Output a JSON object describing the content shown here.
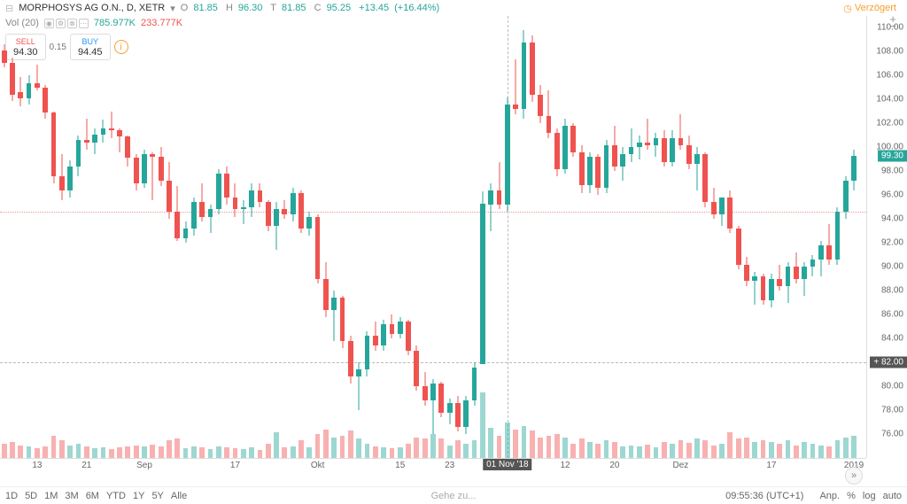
{
  "header": {
    "symbol": "MORPHOSYS AG O.N., D, XETR",
    "O_lbl": "O",
    "O": "81.85",
    "H_lbl": "H",
    "H": "96.30",
    "T_lbl": "T",
    "T": "81.85",
    "C_lbl": "C",
    "C": "95.25",
    "chg": "+13.45",
    "pct": "(+16.44%)",
    "delayed": "Verzögert"
  },
  "volrow": {
    "label": "Vol (20)",
    "v1": "785.977K",
    "v2": "233.777K"
  },
  "buysell": {
    "sell_lbl": "SELL",
    "sell": "94.30",
    "spread": "0.15",
    "buy_lbl": "BUY",
    "buy": "94.45"
  },
  "chart": {
    "type": "candlestick",
    "y_min": 74,
    "y_max": 111,
    "y_ticks": [
      76,
      78,
      80,
      82,
      84,
      86,
      88,
      90,
      92,
      94,
      96,
      98,
      100,
      102,
      104,
      106,
      108,
      110
    ],
    "price_tag": 99.3,
    "cross_y": 82.0,
    "ref_line": 94.6,
    "colors": {
      "up": "#26a69a",
      "down": "#ef5350",
      "grid": "#eeeeee",
      "wick": "#666666"
    },
    "x_ticks": [
      {
        "i": 4,
        "l": "13"
      },
      {
        "i": 10,
        "l": "21"
      },
      {
        "i": 17,
        "l": "Sep"
      },
      {
        "i": 28,
        "l": "17"
      },
      {
        "i": 38,
        "l": "Okt"
      },
      {
        "i": 48,
        "l": "15"
      },
      {
        "i": 54,
        "l": "23"
      },
      {
        "i": 61,
        "l": "01 Nov '18"
      },
      {
        "i": 68,
        "l": "12"
      },
      {
        "i": 74,
        "l": "20"
      },
      {
        "i": 82,
        "l": "Dez"
      },
      {
        "i": 93,
        "l": "17"
      },
      {
        "i": 103,
        "l": "2019"
      }
    ],
    "cross_x": 61,
    "candles": [
      {
        "o": 108.1,
        "h": 108.6,
        "l": 106.7,
        "c": 107.1
      },
      {
        "o": 107.1,
        "h": 107.5,
        "l": 103.9,
        "c": 104.4
      },
      {
        "o": 104.6,
        "h": 105.9,
        "l": 103.4,
        "c": 104.1
      },
      {
        "o": 104.1,
        "h": 106.0,
        "l": 103.6,
        "c": 105.4
      },
      {
        "o": 105.4,
        "h": 106.9,
        "l": 104.8,
        "c": 105.0
      },
      {
        "o": 105.0,
        "h": 105.2,
        "l": 102.4,
        "c": 102.9
      },
      {
        "o": 102.9,
        "h": 103.0,
        "l": 97.0,
        "c": 97.6
      },
      {
        "o": 97.6,
        "h": 99.4,
        "l": 95.6,
        "c": 96.4
      },
      {
        "o": 96.4,
        "h": 98.9,
        "l": 95.8,
        "c": 98.4
      },
      {
        "o": 98.4,
        "h": 101.0,
        "l": 97.6,
        "c": 100.6
      },
      {
        "o": 100.6,
        "h": 102.4,
        "l": 99.8,
        "c": 100.4
      },
      {
        "o": 100.4,
        "h": 101.6,
        "l": 99.4,
        "c": 101.1
      },
      {
        "o": 101.1,
        "h": 102.3,
        "l": 100.4,
        "c": 101.6
      },
      {
        "o": 101.6,
        "h": 103.0,
        "l": 100.8,
        "c": 101.4
      },
      {
        "o": 101.4,
        "h": 101.6,
        "l": 99.6,
        "c": 100.9
      },
      {
        "o": 100.9,
        "h": 101.0,
        "l": 98.4,
        "c": 99.1
      },
      {
        "o": 99.1,
        "h": 99.4,
        "l": 96.4,
        "c": 97.0
      },
      {
        "o": 97.0,
        "h": 99.8,
        "l": 96.6,
        "c": 99.4
      },
      {
        "o": 99.4,
        "h": 99.6,
        "l": 95.6,
        "c": 99.2
      },
      {
        "o": 99.2,
        "h": 100.0,
        "l": 96.8,
        "c": 97.2
      },
      {
        "o": 97.2,
        "h": 98.8,
        "l": 94.0,
        "c": 94.6
      },
      {
        "o": 94.6,
        "h": 96.8,
        "l": 92.2,
        "c": 92.4
      },
      {
        "o": 92.4,
        "h": 93.8,
        "l": 92.0,
        "c": 93.2
      },
      {
        "o": 93.2,
        "h": 95.8,
        "l": 92.6,
        "c": 95.4
      },
      {
        "o": 95.4,
        "h": 97.0,
        "l": 93.8,
        "c": 94.2
      },
      {
        "o": 94.2,
        "h": 95.2,
        "l": 92.8,
        "c": 94.8
      },
      {
        "o": 94.8,
        "h": 98.2,
        "l": 94.4,
        "c": 97.8
      },
      {
        "o": 97.8,
        "h": 98.4,
        "l": 95.2,
        "c": 95.8
      },
      {
        "o": 95.8,
        "h": 97.0,
        "l": 94.2,
        "c": 94.8
      },
      {
        "o": 94.8,
        "h": 95.6,
        "l": 93.6,
        "c": 95.0
      },
      {
        "o": 95.0,
        "h": 97.0,
        "l": 94.2,
        "c": 96.4
      },
      {
        "o": 96.4,
        "h": 97.0,
        "l": 95.0,
        "c": 95.4
      },
      {
        "o": 95.4,
        "h": 95.6,
        "l": 93.0,
        "c": 93.4
      },
      {
        "o": 93.4,
        "h": 95.4,
        "l": 91.4,
        "c": 94.8
      },
      {
        "o": 94.8,
        "h": 95.6,
        "l": 94.0,
        "c": 94.4
      },
      {
        "o": 94.4,
        "h": 96.6,
        "l": 93.8,
        "c": 96.2
      },
      {
        "o": 96.2,
        "h": 96.4,
        "l": 92.8,
        "c": 93.2
      },
      {
        "o": 93.2,
        "h": 94.6,
        "l": 92.6,
        "c": 94.2
      },
      {
        "o": 94.2,
        "h": 94.4,
        "l": 88.6,
        "c": 89.0
      },
      {
        "o": 89.0,
        "h": 90.4,
        "l": 85.8,
        "c": 86.4
      },
      {
        "o": 86.4,
        "h": 88.0,
        "l": 83.8,
        "c": 87.4
      },
      {
        "o": 87.4,
        "h": 87.6,
        "l": 83.2,
        "c": 83.8
      },
      {
        "o": 83.8,
        "h": 84.2,
        "l": 80.2,
        "c": 80.8
      },
      {
        "o": 80.8,
        "h": 82.0,
        "l": 78.0,
        "c": 81.4
      },
      {
        "o": 81.4,
        "h": 84.6,
        "l": 80.8,
        "c": 84.2
      },
      {
        "o": 84.2,
        "h": 85.4,
        "l": 83.0,
        "c": 83.4
      },
      {
        "o": 83.4,
        "h": 85.6,
        "l": 83.0,
        "c": 85.2
      },
      {
        "o": 85.2,
        "h": 86.0,
        "l": 84.0,
        "c": 84.4
      },
      {
        "o": 84.4,
        "h": 85.8,
        "l": 84.0,
        "c": 85.4
      },
      {
        "o": 85.4,
        "h": 85.6,
        "l": 82.6,
        "c": 83.0
      },
      {
        "o": 83.0,
        "h": 83.4,
        "l": 79.6,
        "c": 80.0
      },
      {
        "o": 80.0,
        "h": 81.2,
        "l": 78.4,
        "c": 78.8
      },
      {
        "o": 78.8,
        "h": 80.6,
        "l": 76.0,
        "c": 80.2
      },
      {
        "o": 80.2,
        "h": 80.4,
        "l": 77.4,
        "c": 77.8
      },
      {
        "o": 77.8,
        "h": 79.0,
        "l": 76.8,
        "c": 78.6
      },
      {
        "o": 78.6,
        "h": 79.2,
        "l": 76.2,
        "c": 76.6
      },
      {
        "o": 76.6,
        "h": 79.2,
        "l": 76.0,
        "c": 78.8
      },
      {
        "o": 78.8,
        "h": 82.0,
        "l": 78.4,
        "c": 81.6
      },
      {
        "o": 81.85,
        "h": 96.3,
        "l": 81.85,
        "c": 95.25
      },
      {
        "o": 95.2,
        "h": 97.0,
        "l": 93.0,
        "c": 96.4
      },
      {
        "o": 96.4,
        "h": 98.8,
        "l": 94.8,
        "c": 95.2
      },
      {
        "o": 95.2,
        "h": 104.2,
        "l": 94.6,
        "c": 103.6
      },
      {
        "o": 103.6,
        "h": 107.4,
        "l": 102.8,
        "c": 103.2
      },
      {
        "o": 103.2,
        "h": 109.8,
        "l": 102.4,
        "c": 108.8
      },
      {
        "o": 108.8,
        "h": 109.4,
        "l": 103.8,
        "c": 104.4
      },
      {
        "o": 104.4,
        "h": 105.2,
        "l": 102.0,
        "c": 102.6
      },
      {
        "o": 102.6,
        "h": 104.8,
        "l": 100.8,
        "c": 101.2
      },
      {
        "o": 101.2,
        "h": 101.6,
        "l": 97.6,
        "c": 98.2
      },
      {
        "o": 98.2,
        "h": 102.4,
        "l": 97.8,
        "c": 101.8
      },
      {
        "o": 101.8,
        "h": 102.0,
        "l": 99.2,
        "c": 99.6
      },
      {
        "o": 99.6,
        "h": 100.2,
        "l": 96.2,
        "c": 96.8
      },
      {
        "o": 96.8,
        "h": 99.6,
        "l": 96.2,
        "c": 99.2
      },
      {
        "o": 99.2,
        "h": 99.4,
        "l": 96.0,
        "c": 96.6
      },
      {
        "o": 96.6,
        "h": 100.6,
        "l": 96.2,
        "c": 100.2
      },
      {
        "o": 100.2,
        "h": 101.8,
        "l": 98.0,
        "c": 98.4
      },
      {
        "o": 98.4,
        "h": 100.0,
        "l": 97.2,
        "c": 99.4
      },
      {
        "o": 99.4,
        "h": 101.6,
        "l": 98.8,
        "c": 100.0
      },
      {
        "o": 100.0,
        "h": 101.0,
        "l": 99.0,
        "c": 100.4
      },
      {
        "o": 100.4,
        "h": 102.4,
        "l": 99.8,
        "c": 100.2
      },
      {
        "o": 100.2,
        "h": 101.2,
        "l": 99.2,
        "c": 100.8
      },
      {
        "o": 100.8,
        "h": 101.4,
        "l": 98.4,
        "c": 98.8
      },
      {
        "o": 98.8,
        "h": 101.4,
        "l": 98.4,
        "c": 100.8
      },
      {
        "o": 100.8,
        "h": 102.8,
        "l": 99.8,
        "c": 100.2
      },
      {
        "o": 100.2,
        "h": 101.0,
        "l": 98.2,
        "c": 98.6
      },
      {
        "o": 98.6,
        "h": 100.0,
        "l": 96.4,
        "c": 99.4
      },
      {
        "o": 99.4,
        "h": 99.6,
        "l": 95.0,
        "c": 95.4
      },
      {
        "o": 95.4,
        "h": 96.6,
        "l": 94.0,
        "c": 94.4
      },
      {
        "o": 94.4,
        "h": 94.6,
        "l": 93.4,
        "c": 95.8
      },
      {
        "o": 95.8,
        "h": 96.4,
        "l": 92.8,
        "c": 93.2
      },
      {
        "o": 93.2,
        "h": 93.4,
        "l": 89.8,
        "c": 90.2
      },
      {
        "o": 90.2,
        "h": 90.8,
        "l": 88.4,
        "c": 88.8
      },
      {
        "o": 88.8,
        "h": 89.6,
        "l": 86.8,
        "c": 89.2
      },
      {
        "o": 89.2,
        "h": 89.4,
        "l": 86.8,
        "c": 87.2
      },
      {
        "o": 87.2,
        "h": 89.4,
        "l": 86.6,
        "c": 89.0
      },
      {
        "o": 89.0,
        "h": 90.2,
        "l": 88.0,
        "c": 88.4
      },
      {
        "o": 88.4,
        "h": 90.4,
        "l": 87.0,
        "c": 90.0
      },
      {
        "o": 90.0,
        "h": 91.2,
        "l": 88.6,
        "c": 89.0
      },
      {
        "o": 89.0,
        "h": 90.4,
        "l": 87.6,
        "c": 90.0
      },
      {
        "o": 90.0,
        "h": 91.0,
        "l": 89.2,
        "c": 90.6
      },
      {
        "o": 90.6,
        "h": 92.2,
        "l": 89.2,
        "c": 91.8
      },
      {
        "o": 91.8,
        "h": 93.6,
        "l": 90.2,
        "c": 90.6
      },
      {
        "o": 90.6,
        "h": 95.0,
        "l": 90.2,
        "c": 94.6
      },
      {
        "o": 94.6,
        "h": 97.6,
        "l": 94.0,
        "c": 97.2
      },
      {
        "o": 97.2,
        "h": 99.8,
        "l": 96.4,
        "c": 99.3
      }
    ],
    "volumes": [
      18,
      20,
      16,
      14,
      12,
      15,
      28,
      22,
      16,
      18,
      14,
      12,
      13,
      11,
      13,
      15,
      16,
      14,
      17,
      14,
      22,
      24,
      12,
      14,
      13,
      11,
      15,
      13,
      12,
      11,
      13,
      10,
      18,
      32,
      13,
      14,
      22,
      13,
      30,
      36,
      26,
      28,
      34,
      24,
      18,
      14,
      13,
      12,
      13,
      18,
      26,
      24,
      30,
      24,
      16,
      22,
      18,
      22,
      82,
      38,
      28,
      44,
      36,
      40,
      34,
      26,
      28,
      30,
      26,
      18,
      24,
      20,
      18,
      22,
      20,
      14,
      16,
      14,
      17,
      13,
      20,
      18,
      22,
      19,
      24,
      22,
      16,
      18,
      32,
      24,
      26,
      20,
      22,
      20,
      18,
      22,
      16,
      20,
      18,
      16,
      14,
      22,
      26,
      28
    ],
    "vol_max": 100
  },
  "bottom": {
    "timeframes": [
      "1D",
      "5D",
      "1M",
      "3M",
      "6M",
      "YTD",
      "1Y",
      "5Y",
      "Alle"
    ],
    "goto": "Gehe zu...",
    "time": "09:55:36 (UTC+1)",
    "opts": [
      "Anp.",
      "%",
      "log",
      "auto"
    ]
  }
}
